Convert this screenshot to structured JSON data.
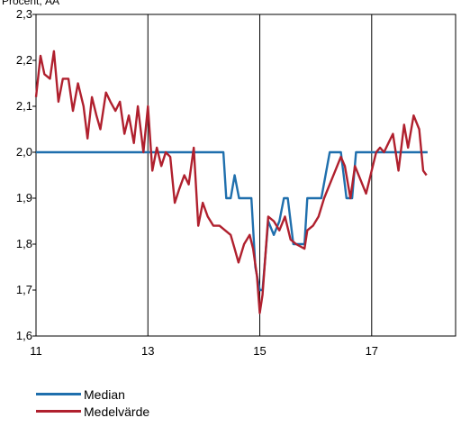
{
  "chart_data": {
    "type": "line",
    "ylabel": "Procent, ÅÅ",
    "xlim": [
      11,
      18.5
    ],
    "ylim": [
      1.6,
      2.3
    ],
    "x_ticks": [
      11,
      13,
      15,
      17
    ],
    "x_tick_labels": [
      "11",
      "13",
      "15",
      "17"
    ],
    "y_ticks": [
      1.6,
      1.7,
      1.8,
      1.9,
      2.0,
      2.1,
      2.2,
      2.3
    ],
    "y_tick_labels": [
      "1,6",
      "1,7",
      "1,8",
      "1,9",
      "2,0",
      "2,1",
      "2,2",
      "2,3"
    ],
    "grid": "vertical",
    "legend_position": "bottom-left",
    "series": [
      {
        "name": "Median",
        "color": "#1f6fad",
        "points": [
          [
            11.0,
            2.0
          ],
          [
            14.35,
            2.0
          ],
          [
            14.4,
            1.9
          ],
          [
            14.48,
            1.9
          ],
          [
            14.55,
            1.95
          ],
          [
            14.63,
            1.9
          ],
          [
            14.85,
            1.9
          ],
          [
            14.92,
            1.75
          ],
          [
            15.0,
            1.7
          ],
          [
            15.05,
            1.7
          ],
          [
            15.15,
            1.85
          ],
          [
            15.25,
            1.82
          ],
          [
            15.35,
            1.85
          ],
          [
            15.43,
            1.9
          ],
          [
            15.5,
            1.9
          ],
          [
            15.6,
            1.8
          ],
          [
            15.75,
            1.8
          ],
          [
            15.8,
            1.8
          ],
          [
            15.85,
            1.9
          ],
          [
            16.05,
            1.9
          ],
          [
            16.1,
            1.9
          ],
          [
            16.25,
            2.0
          ],
          [
            16.45,
            2.0
          ],
          [
            16.55,
            1.9
          ],
          [
            16.65,
            1.9
          ],
          [
            16.72,
            2.0
          ],
          [
            18.0,
            2.0
          ]
        ]
      },
      {
        "name": "Medelvärde",
        "color": "#b0202e",
        "points": [
          [
            11.0,
            2.12
          ],
          [
            11.08,
            2.21
          ],
          [
            11.15,
            2.17
          ],
          [
            11.25,
            2.16
          ],
          [
            11.32,
            2.22
          ],
          [
            11.4,
            2.11
          ],
          [
            11.48,
            2.16
          ],
          [
            11.58,
            2.16
          ],
          [
            11.66,
            2.09
          ],
          [
            11.75,
            2.15
          ],
          [
            11.85,
            2.1
          ],
          [
            11.92,
            2.03
          ],
          [
            12.0,
            2.12
          ],
          [
            12.08,
            2.08
          ],
          [
            12.15,
            2.05
          ],
          [
            12.25,
            2.13
          ],
          [
            12.33,
            2.11
          ],
          [
            12.42,
            2.09
          ],
          [
            12.5,
            2.11
          ],
          [
            12.58,
            2.04
          ],
          [
            12.66,
            2.08
          ],
          [
            12.75,
            2.02
          ],
          [
            12.82,
            2.1
          ],
          [
            12.92,
            2.0
          ],
          [
            13.0,
            2.1
          ],
          [
            13.08,
            1.96
          ],
          [
            13.16,
            2.01
          ],
          [
            13.24,
            1.97
          ],
          [
            13.32,
            2.0
          ],
          [
            13.4,
            1.99
          ],
          [
            13.48,
            1.89
          ],
          [
            13.56,
            1.92
          ],
          [
            13.65,
            1.95
          ],
          [
            13.73,
            1.93
          ],
          [
            13.82,
            2.01
          ],
          [
            13.9,
            1.84
          ],
          [
            13.98,
            1.89
          ],
          [
            14.07,
            1.86
          ],
          [
            14.17,
            1.84
          ],
          [
            14.28,
            1.84
          ],
          [
            14.38,
            1.83
          ],
          [
            14.48,
            1.82
          ],
          [
            14.55,
            1.79
          ],
          [
            14.62,
            1.76
          ],
          [
            14.72,
            1.8
          ],
          [
            14.82,
            1.82
          ],
          [
            14.88,
            1.79
          ],
          [
            14.95,
            1.73
          ],
          [
            15.0,
            1.65
          ],
          [
            15.05,
            1.69
          ],
          [
            15.15,
            1.86
          ],
          [
            15.25,
            1.85
          ],
          [
            15.35,
            1.83
          ],
          [
            15.45,
            1.86
          ],
          [
            15.55,
            1.81
          ],
          [
            15.65,
            1.8
          ],
          [
            15.8,
            1.79
          ],
          [
            15.85,
            1.83
          ],
          [
            15.95,
            1.84
          ],
          [
            16.05,
            1.86
          ],
          [
            16.15,
            1.9
          ],
          [
            16.25,
            1.93
          ],
          [
            16.35,
            1.96
          ],
          [
            16.45,
            1.99
          ],
          [
            16.52,
            1.97
          ],
          [
            16.62,
            1.9
          ],
          [
            16.7,
            1.97
          ],
          [
            16.8,
            1.94
          ],
          [
            16.9,
            1.91
          ],
          [
            17.0,
            1.96
          ],
          [
            17.08,
            2.0
          ],
          [
            17.15,
            2.01
          ],
          [
            17.22,
            2.0
          ],
          [
            17.3,
            2.02
          ],
          [
            17.38,
            2.04
          ],
          [
            17.48,
            1.96
          ],
          [
            17.58,
            2.06
          ],
          [
            17.65,
            2.01
          ],
          [
            17.75,
            2.08
          ],
          [
            17.85,
            2.05
          ],
          [
            17.92,
            1.96
          ],
          [
            17.98,
            1.95
          ]
        ]
      }
    ]
  }
}
